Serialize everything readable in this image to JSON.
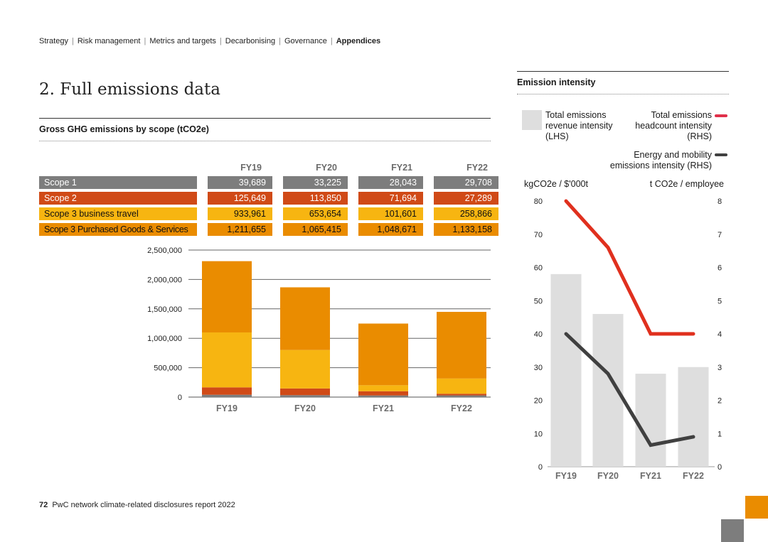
{
  "nav": {
    "items": [
      "Strategy",
      "Risk management",
      "Metrics and targets",
      "Decarbonising",
      "Governance"
    ],
    "current": "Appendices"
  },
  "page": {
    "title": "2. Full emissions data"
  },
  "left_section": {
    "heading": "Gross GHG emissions by scope (tCO2e)"
  },
  "right_section": {
    "heading": "Emission intensity"
  },
  "table": {
    "headers": [
      "FY19",
      "FY20",
      "FY21",
      "FY22"
    ],
    "rows": [
      {
        "label": "Scope 1",
        "values": [
          "39,689",
          "33,225",
          "28,043",
          "29,708"
        ]
      },
      {
        "label": "Scope 2",
        "values": [
          "125,649",
          "113,850",
          "71,694",
          "27,289"
        ]
      },
      {
        "label": "Scope 3 business travel",
        "values": [
          "933,961",
          "653,654",
          "101,601",
          "258,866"
        ]
      },
      {
        "label": "Scope 3 Purchased Goods & Services",
        "values": [
          "1,211,655",
          "1,065,415",
          "1,048,671",
          "1,133,158"
        ]
      }
    ]
  },
  "legend": {
    "revenue": "Total emissions revenue intensity (LHS)",
    "headcount": "Total emissions headcount intensity (RHS)",
    "energy": "Energy and mobility emissions intensity (RHS)"
  },
  "axis_units": {
    "left": "kgCO2e / $'000t",
    "right": "t CO2e / employee"
  },
  "colors": {
    "scope1": "#7d7d7d",
    "scope2": "#d04a17",
    "scope3_travel": "#f7b511",
    "scope3_goods": "#ea8c00",
    "revenue_bar": "#dedede",
    "headcount_line": "#e0301e",
    "energy_line": "#404040"
  },
  "chart_data": [
    {
      "type": "bar",
      "stacked": true,
      "title": "Gross GHG emissions by scope (tCO2e)",
      "categories": [
        "FY19",
        "FY20",
        "FY21",
        "FY22"
      ],
      "series": [
        {
          "name": "Scope 1",
          "values": [
            39689,
            33225,
            28043,
            29708
          ]
        },
        {
          "name": "Scope 2",
          "values": [
            125649,
            113850,
            71694,
            27289
          ]
        },
        {
          "name": "Scope 3 business travel",
          "values": [
            933961,
            653654,
            101601,
            258866
          ]
        },
        {
          "name": "Scope 3 Purchased Goods & Services",
          "values": [
            1211655,
            1065415,
            1048671,
            1133158
          ]
        }
      ],
      "ylim": [
        0,
        2500000
      ],
      "yticks": [
        "0",
        "500,000",
        "1,000,000",
        "1,500,000",
        "2,000,000",
        "2,500,000"
      ],
      "ytick_values": [
        0,
        500000,
        1000000,
        1500000,
        2000000,
        2500000
      ],
      "xlabel": "",
      "ylabel": "",
      "grid": true
    },
    {
      "type": "bar",
      "title": "Emission intensity",
      "categories": [
        "FY19",
        "FY20",
        "FY21",
        "FY22"
      ],
      "series": [
        {
          "name": "Total emissions revenue intensity (LHS)",
          "type": "bar",
          "axis": "left",
          "values": [
            58,
            46,
            28,
            30
          ]
        },
        {
          "name": "Total emissions headcount intensity (RHS)",
          "type": "line",
          "axis": "right",
          "values": [
            8.0,
            6.6,
            4.0,
            4.0
          ]
        },
        {
          "name": "Energy and mobility emissions intensity (RHS)",
          "type": "line",
          "axis": "right",
          "values": [
            4.0,
            2.8,
            0.65,
            0.9
          ]
        }
      ],
      "ylim_left": [
        0,
        80
      ],
      "ylim_right": [
        0,
        8
      ],
      "yticks_left": [
        "0",
        "10",
        "20",
        "30",
        "40",
        "50",
        "60",
        "70",
        "80"
      ],
      "yticks_right": [
        "0",
        "1",
        "2",
        "3",
        "4",
        "5",
        "6",
        "7",
        "8"
      ],
      "ylabel_left": "kgCO2e / $'000t",
      "ylabel_right": "t CO2e / employee"
    }
  ],
  "footer": {
    "page_number": "72",
    "text": "PwC network climate-related disclosures report 2022"
  },
  "corner_blocks": {
    "top": "#ea8c00",
    "bottom": "#7d7d7d"
  }
}
